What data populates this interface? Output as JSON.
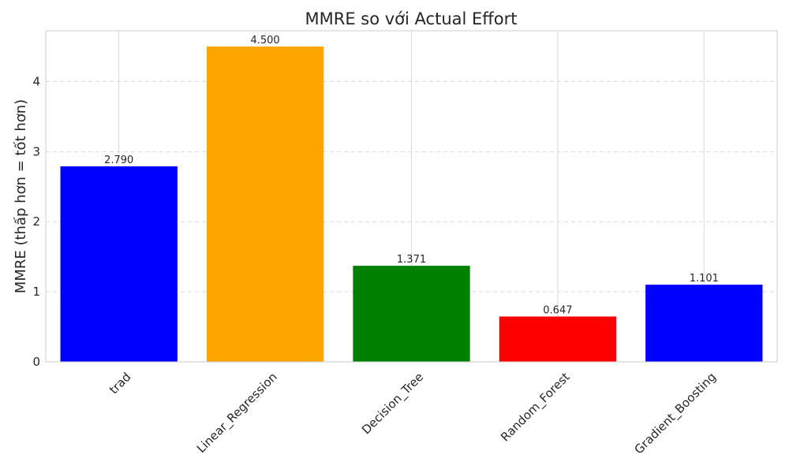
{
  "chart_data": {
    "type": "bar",
    "title": "MMRE so với Actual Effort",
    "xlabel": "",
    "ylabel": "MMRE (thấp hơn = tốt hơn)",
    "categories": [
      "trad",
      "Linear_Regression",
      "Decision_Tree",
      "Random_Forest",
      "Gradient_Boosting"
    ],
    "values": [
      2.79,
      4.5,
      1.371,
      0.647,
      1.101
    ],
    "data_labels": [
      "2.790",
      "4.500",
      "1.371",
      "0.647",
      "1.101"
    ],
    "colors": [
      "#0000ff",
      "#ffa500",
      "#008000",
      "#ff0000",
      "#0000ff"
    ],
    "ylim": [
      0,
      4.725
    ],
    "yticks": [
      0,
      1,
      2,
      3,
      4
    ],
    "ytick_labels": [
      "0",
      "1",
      "2",
      "3",
      "4"
    ],
    "grid": true,
    "legend": "none"
  }
}
